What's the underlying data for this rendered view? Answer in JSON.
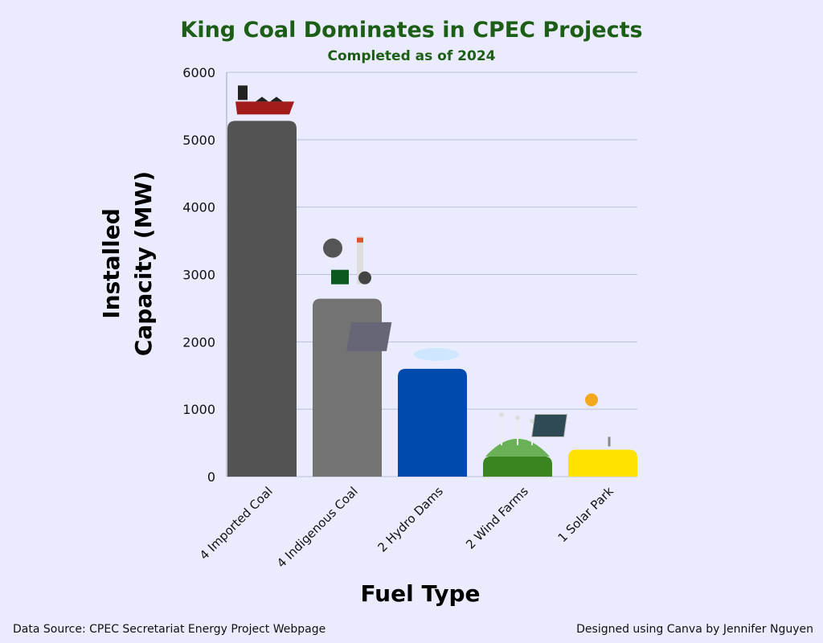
{
  "chart_data": {
    "type": "bar",
    "title": "King Coal Dominates in CPEC Projects",
    "subtitle": "Completed as of 2024",
    "xlabel": "Fuel Type",
    "ylabel_lines": [
      "Installed",
      "Capacity (MW)"
    ],
    "ylabel": "Installed Capacity (MW)",
    "categories": [
      "4 Imported Coal",
      "4 Indigenous Coal",
      "2 Hydro Dams",
      "2 Wind Farms",
      "1 Solar Park"
    ],
    "values": [
      5280,
      2640,
      1600,
      300,
      400
    ],
    "colors": [
      "#535353",
      "#737373",
      "#004aad",
      "#3a851f",
      "#ffe200"
    ],
    "icons": [
      "cargo-ship-icon",
      "coal-power-plant-icon",
      "hydro-dam-icon",
      "wind-turbine-icon",
      "solar-panel-icon"
    ],
    "ylim": [
      0,
      6000
    ],
    "yticks": [
      0,
      1000,
      2000,
      3000,
      4000,
      5000,
      6000
    ],
    "grid": true
  },
  "footer": {
    "source": "Data Source: CPEC Secretariat Energy Project Webpage",
    "credit": "Designed using Canva by Jennifer Nguyen"
  }
}
